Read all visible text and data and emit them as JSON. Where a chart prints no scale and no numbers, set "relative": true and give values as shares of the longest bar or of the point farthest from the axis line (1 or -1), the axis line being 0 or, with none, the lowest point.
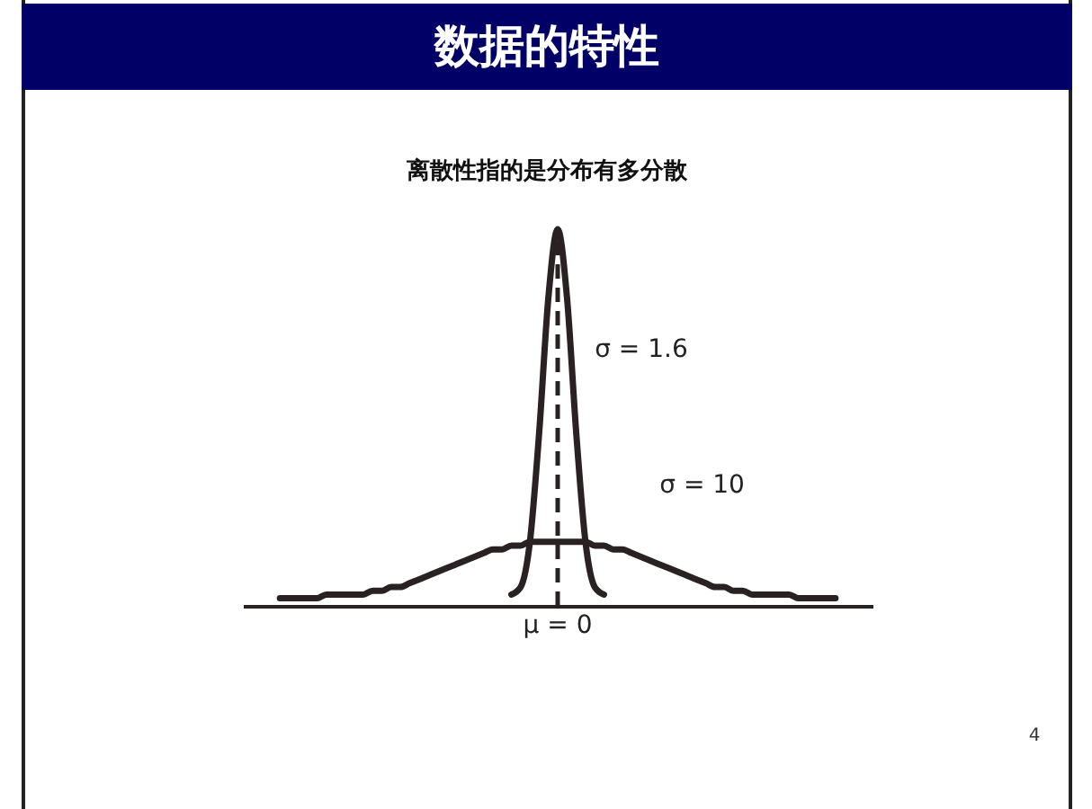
{
  "chart_data": {
    "type": "line",
    "title": "数据的特性",
    "subtitle": "离散性指的是分布有多分散",
    "relative": true,
    "categories": [
      null,
      null,
      null,
      null,
      null,
      null,
      null,
      null,
      null,
      null,
      null,
      null,
      null,
      null,
      null,
      null,
      null,
      null,
      null,
      null,
      null,
      null,
      null,
      null,
      null,
      null,
      null,
      null,
      null,
      null,
      null,
      null,
      null,
      null,
      null,
      null,
      null,
      null,
      null,
      null,
      null,
      null,
      null,
      null,
      null,
      null,
      null,
      null,
      null,
      null,
      null,
      null,
      null,
      null,
      null,
      null,
      null,
      null,
      null,
      null,
      null
    ],
    "series": [
      {
        "color": "#2a2222",
        "values": [
          null,
          null,
          null,
          null,
          null,
          null,
          null,
          null,
          null,
          null,
          null,
          null,
          null,
          null,
          null,
          null,
          null,
          null,
          null,
          null,
          null,
          null,
          null,
          null,
          null,
          0.03,
          0.05,
          0.17,
          0.46,
          0.82,
          1,
          0.82,
          0.46,
          0.17,
          0.05,
          0.03,
          null,
          null,
          null,
          null,
          null,
          null,
          null,
          null,
          null,
          null,
          null,
          null,
          null,
          null,
          null,
          null,
          null,
          null,
          null,
          null,
          null,
          null,
          null,
          null,
          null
        ]
      },
      {
        "color": "#2a2222",
        "values": [
          0.02,
          0.02,
          0.02,
          0.02,
          0.02,
          0.03,
          0.03,
          0.03,
          0.03,
          0.03,
          0.04,
          0.04,
          0.05,
          0.05,
          0.06,
          0.07,
          0.08,
          0.09,
          0.1,
          0.11,
          0.12,
          0.13,
          0.14,
          0.15,
          0.15,
          0.16,
          0.16,
          0.17,
          0.17,
          0.17,
          0.17,
          0.17,
          0.17,
          0.17,
          0.16,
          0.16,
          0.15,
          0.15,
          0.14,
          0.13,
          0.12,
          0.11,
          0.1,
          0.09,
          0.08,
          0.07,
          0.06,
          0.05,
          0.05,
          0.04,
          0.04,
          0.03,
          0.03,
          0.03,
          0.03,
          0.03,
          0.02,
          0.02,
          0.02,
          0.02,
          0.02
        ]
      }
    ],
    "line_style": "solid",
    "annotations": [
      "σ = 1.6",
      "σ = 10",
      "μ = 0",
      "4"
    ]
  }
}
